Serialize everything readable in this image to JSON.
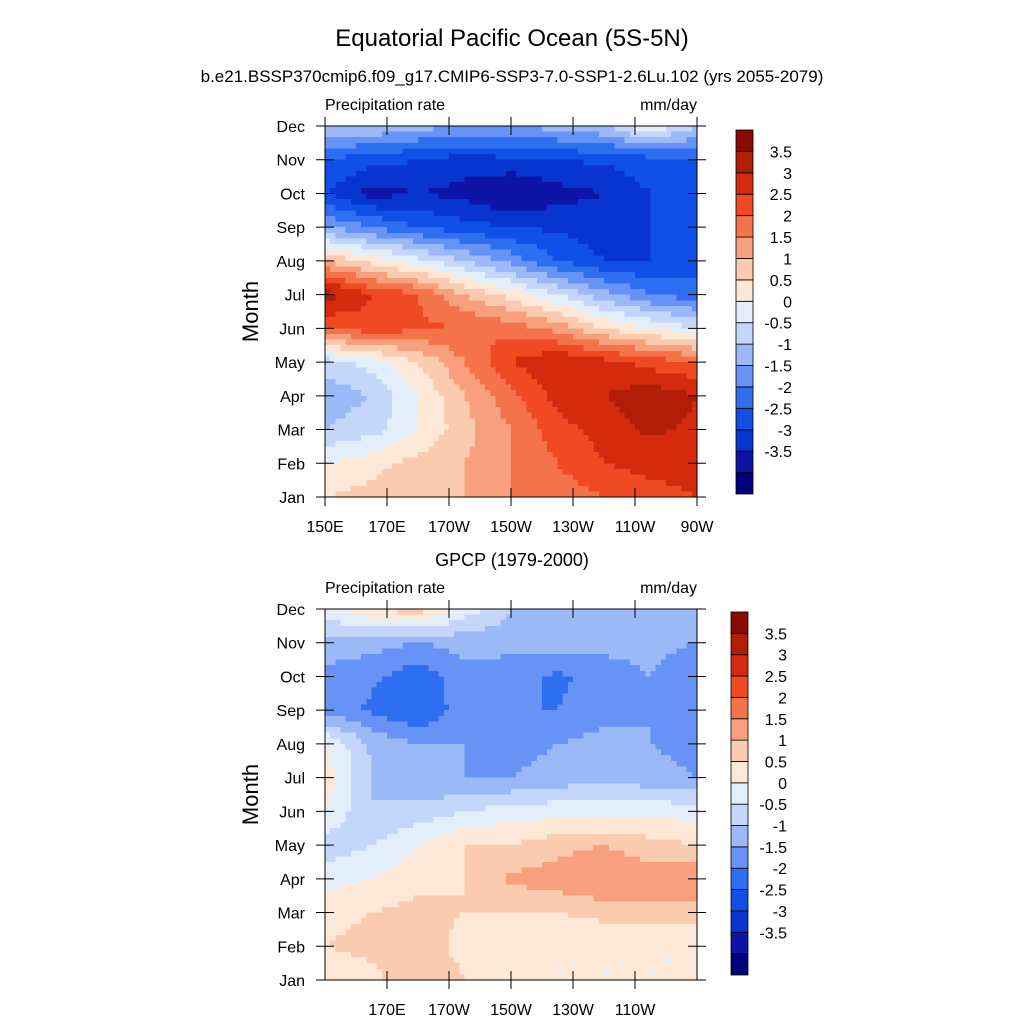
{
  "title": "Equatorial Pacific Ocean (5S-5N)",
  "chart_data": [
    {
      "type": "heatmap",
      "subtitle": "b.e21.BSSP370cmip6.f09_g17.CMIP6-SSP3-7.0-SSP1-2.6Lu.102 (yrs 2055-2079)",
      "variable_label": "Precipitation rate",
      "units_label": "mm/day",
      "xlabel": "",
      "ylabel": "Month",
      "x_range": [
        150,
        270
      ],
      "x_ticks": [
        150,
        170,
        190,
        210,
        230,
        250,
        270
      ],
      "x_tick_labels": [
        "150E",
        "170E",
        "170W",
        "150W",
        "130W",
        "110W",
        "90W"
      ],
      "y_tick_labels": [
        "Jan",
        "Feb",
        "Mar",
        "Apr",
        "May",
        "Jun",
        "Jul",
        "Aug",
        "Sep",
        "Oct",
        "Nov",
        "Dec"
      ],
      "lon": [
        150,
        165,
        180,
        195,
        210,
        225,
        240,
        255,
        270
      ],
      "values": [
        [
          1.0,
          1.2,
          1.5,
          1.5,
          2.0,
          2.2,
          2.5,
          2.8,
          3.0
        ],
        [
          0.5,
          0.8,
          1.2,
          1.5,
          2.0,
          2.5,
          3.0,
          3.2,
          3.2
        ],
        [
          -0.5,
          -0.2,
          0.5,
          1.3,
          2.0,
          2.8,
          3.2,
          3.6,
          3.4
        ],
        [
          -0.8,
          -0.5,
          0.5,
          1.5,
          2.3,
          3.2,
          3.5,
          3.8,
          3.5
        ],
        [
          -0.3,
          0.2,
          1.0,
          2.0,
          3.0,
          3.5,
          3.2,
          2.8,
          2.5
        ],
        [
          2.5,
          2.8,
          2.6,
          2.5,
          2.3,
          1.8,
          1.0,
          0.5,
          0.0
        ],
        [
          3.8,
          3.0,
          2.5,
          1.5,
          0.8,
          0.0,
          -0.8,
          -1.5,
          -1.8
        ],
        [
          1.5,
          0.8,
          0.2,
          -0.5,
          -1.2,
          -2.0,
          -2.5,
          -2.5,
          -2.2
        ],
        [
          -1.0,
          -1.5,
          -2.0,
          -2.3,
          -2.5,
          -2.6,
          -2.8,
          -2.5,
          -2.2
        ],
        [
          -2.5,
          -3.2,
          -3.0,
          -3.2,
          -3.6,
          -3.2,
          -3.0,
          -2.5,
          -2.5
        ],
        [
          -2.0,
          -2.3,
          -2.5,
          -2.7,
          -2.6,
          -2.5,
          -2.4,
          -2.2,
          -2.0
        ],
        [
          -0.5,
          -0.5,
          -0.8,
          -1.0,
          -1.0,
          -0.8,
          -0.5,
          0.5,
          -0.5
        ]
      ],
      "levels": [
        -3.5,
        -3,
        -2.5,
        -2,
        -1.5,
        -1,
        -0.5,
        0,
        0.5,
        1,
        1.5,
        2,
        2.5,
        3,
        3.5
      ],
      "colorbar_labels": [
        "3.5",
        "3",
        "2.5",
        "2",
        "1.5",
        "1",
        "0.5",
        "0",
        "-0.5",
        "-1",
        "-1.5",
        "-2",
        "-2.5",
        "-3",
        "-3.5"
      ],
      "colors": [
        "#00007a",
        "#0e14a6",
        "#0835cf",
        "#1150e6",
        "#2e6ef0",
        "#6693f5",
        "#9bb8f7",
        "#c4d6f9",
        "#e3eefb",
        "#fde8d8",
        "#fbcbaf",
        "#f8a07e",
        "#f5734b",
        "#ef4a22",
        "#d42a0e",
        "#b01e06",
        "#8a0a02"
      ]
    },
    {
      "type": "heatmap",
      "subtitle": "GPCP (1979-2000)",
      "variable_label": "Precipitation rate",
      "units_label": "mm/day",
      "xlabel": "",
      "ylabel": "Month",
      "x_range": [
        150,
        270
      ],
      "x_ticks": [
        170,
        190,
        210,
        230,
        250
      ],
      "x_tick_labels": [
        "170E",
        "170W",
        "150W",
        "130W",
        "110W"
      ],
      "y_tick_labels": [
        "Jan",
        "Feb",
        "Mar",
        "Apr",
        "May",
        "Jun",
        "Jul",
        "Aug",
        "Sep",
        "Oct",
        "Nov",
        "Dec"
      ],
      "lon": [
        150,
        165,
        180,
        195,
        210,
        225,
        240,
        255,
        270
      ],
      "values": [
        [
          0.5,
          0.8,
          1.5,
          1.0,
          0.5,
          0.5,
          0.5,
          0.5,
          0.5
        ],
        [
          1.0,
          1.2,
          1.3,
          0.8,
          0.7,
          0.5,
          0.5,
          0.5,
          0.5
        ],
        [
          0.8,
          1.0,
          1.2,
          1.0,
          1.0,
          1.0,
          1.2,
          1.3,
          1.2
        ],
        [
          0.3,
          0.5,
          0.8,
          1.0,
          1.6,
          1.8,
          2.0,
          1.8,
          2.0
        ],
        [
          -0.3,
          0.0,
          0.5,
          1.0,
          1.0,
          1.3,
          1.5,
          1.2,
          1.0
        ],
        [
          0.5,
          -0.5,
          -0.3,
          0.0,
          0.2,
          0.3,
          0.2,
          0.3,
          0.3
        ],
        [
          0.8,
          -0.5,
          -1.0,
          -1.0,
          -1.0,
          -0.8,
          -0.6,
          -0.8,
          -1.0
        ],
        [
          0.5,
          -0.6,
          -1.0,
          -1.0,
          -1.2,
          -1.0,
          -0.8,
          -1.0,
          -1.2
        ],
        [
          -1.2,
          -1.6,
          -2.0,
          -1.2,
          -1.5,
          -1.5,
          -1.2,
          -1.0,
          -1.2
        ],
        [
          -1.2,
          -1.4,
          -1.8,
          -1.2,
          -1.3,
          -1.6,
          -1.3,
          -1.0,
          -1.5
        ],
        [
          -0.6,
          -0.8,
          -1.0,
          -0.8,
          -0.8,
          -0.8,
          -0.8,
          -0.8,
          -1.0
        ],
        [
          0.2,
          1.0,
          1.3,
          0.3,
          -0.5,
          -0.8,
          -0.8,
          -0.8,
          -0.8
        ]
      ],
      "levels": [
        -3.5,
        -3,
        -2.5,
        -2,
        -1.5,
        -1,
        -0.5,
        0,
        0.5,
        1,
        1.5,
        2,
        2.5,
        3,
        3.5
      ],
      "colorbar_labels": [
        "3.5",
        "3",
        "2.5",
        "2",
        "1.5",
        "1",
        "0.5",
        "0",
        "-0.5",
        "-1",
        "-1.5",
        "-2",
        "-2.5",
        "-3",
        "-3.5"
      ],
      "colors": [
        "#00007a",
        "#0e14a6",
        "#0835cf",
        "#1150e6",
        "#2e6ef0",
        "#6693f5",
        "#9bb8f7",
        "#c4d6f9",
        "#e3eefb",
        "#fde8d8",
        "#fbcbaf",
        "#f8a07e",
        "#f5734b",
        "#ef4a22",
        "#d42a0e",
        "#b01e06",
        "#8a0a02"
      ]
    }
  ]
}
